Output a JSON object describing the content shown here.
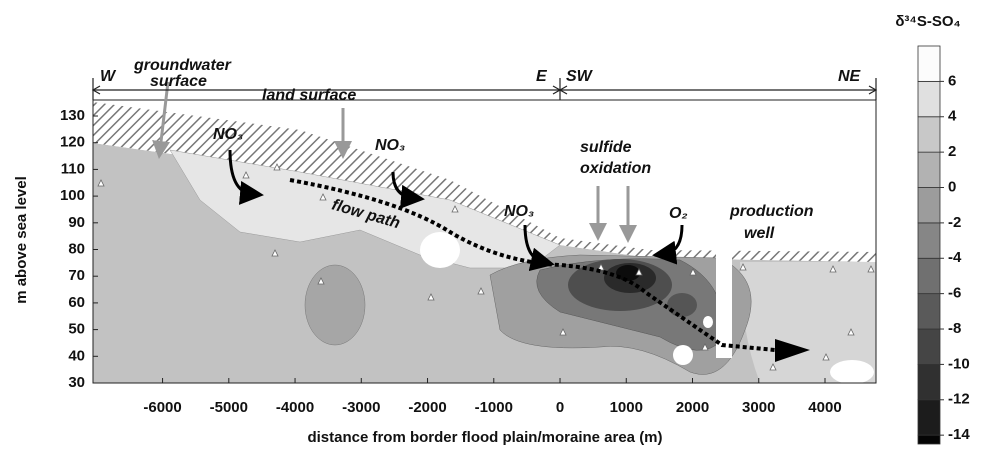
{
  "chart_data": {
    "type": "contour",
    "xlabel": "distance from border flood plain/moraine area (m)",
    "ylabel": "m above sea level",
    "xlim": [
      -7050,
      4770
    ],
    "xticks": [
      -6000,
      -5000,
      -4000,
      -3000,
      -2000,
      -1000,
      0,
      1000,
      2000,
      3000,
      4000
    ],
    "ylim": [
      30,
      136
    ],
    "yticks": [
      30,
      40,
      50,
      60,
      70,
      80,
      90,
      100,
      110,
      120,
      130
    ],
    "sections": [
      "W",
      "E",
      "SW",
      "NE"
    ],
    "annotations": [
      "groundwater",
      "surface",
      "land surface",
      "NO₃",
      "NO₃",
      "NO₃",
      "flow path",
      "sulfide",
      "oxidation",
      "O₂",
      "production",
      "well"
    ],
    "colorbar": {
      "label": "δ³⁴S-SO₄",
      "lim": [
        -14.5,
        8
      ],
      "ticks": [
        -14,
        -12,
        -10,
        -8,
        -6,
        -4,
        -2,
        0,
        2,
        4,
        6
      ],
      "colors": [
        "#050505",
        "#1c1c1c",
        "#303030",
        "#454545",
        "#5a5a5a",
        "#707070",
        "#868686",
        "#9c9c9c",
        "#b2b2b2",
        "#c8c8c8",
        "#e0e0e0",
        "#fcfcfc"
      ]
    }
  }
}
